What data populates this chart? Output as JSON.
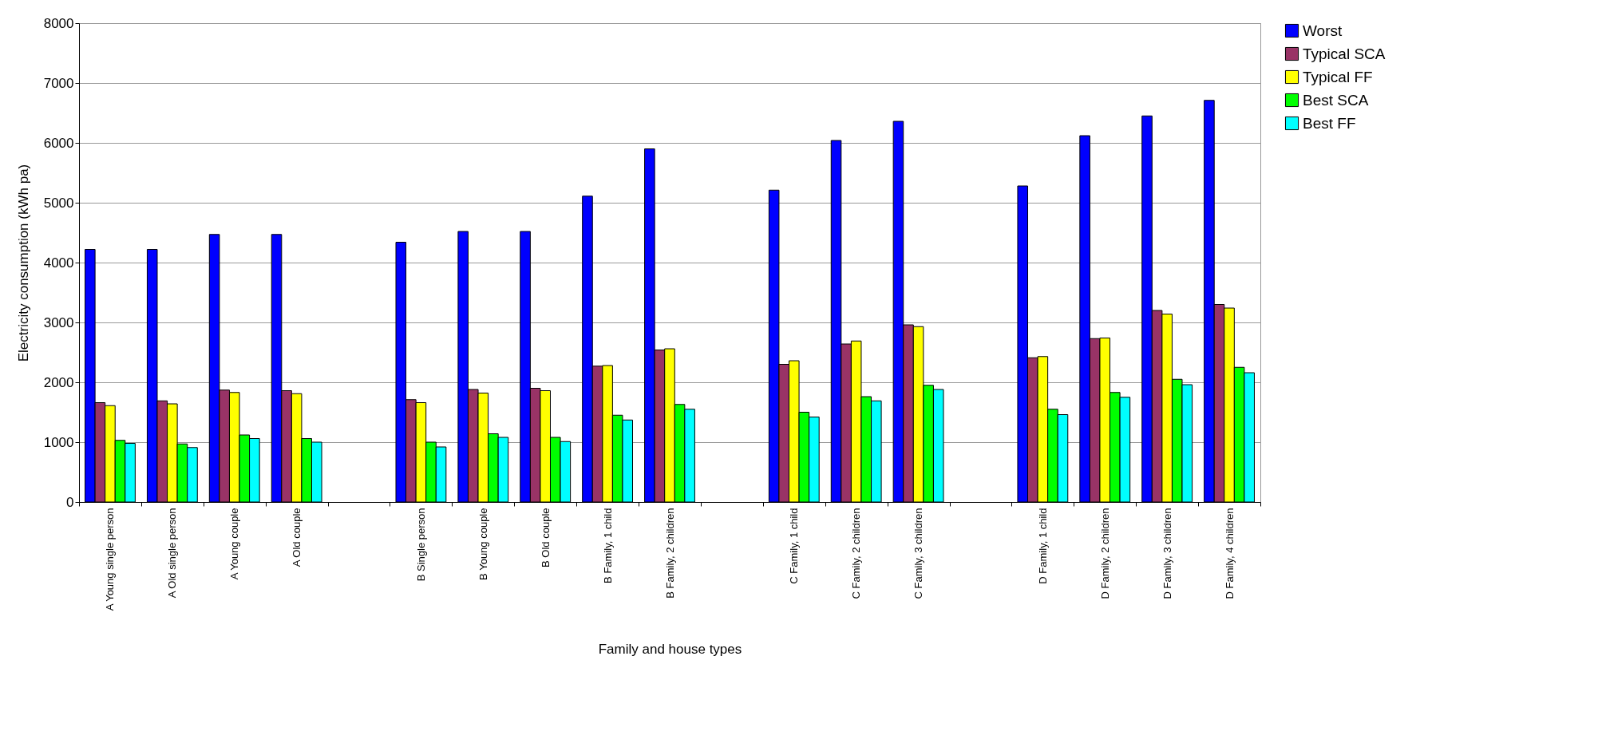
{
  "chart_data": {
    "type": "bar",
    "xlabel": "Family and house types",
    "ylabel": "Electricity consumption (kWh pa)",
    "categories": [
      "A Young single person",
      "A Old single person",
      "A Young couple",
      "A Old couple",
      null,
      "B Single person",
      "B Young couple",
      "B Old couple",
      "B Family, 1 child",
      "B Family, 2 children",
      null,
      "C Family, 1 child",
      "C Family, 2 children",
      "C Family, 3 children",
      null,
      "D Family, 1 child",
      "D Family, 2 children",
      "D Family, 3 children",
      "D Family, 4 children"
    ],
    "series": [
      {
        "name": "Worst",
        "color": "#0000ff",
        "values": [
          4220,
          4220,
          4470,
          4470,
          null,
          4340,
          4520,
          4520,
          5110,
          5900,
          null,
          5210,
          6040,
          6360,
          null,
          5280,
          6120,
          6450,
          6710
        ]
      },
      {
        "name": "Typical SCA",
        "color": "#993366",
        "values": [
          1660,
          1690,
          1870,
          1860,
          null,
          1710,
          1880,
          1900,
          2270,
          2540,
          null,
          2300,
          2640,
          2960,
          null,
          2410,
          2730,
          3200,
          3300
        ]
      },
      {
        "name": "Typical FF",
        "color": "#ffff00",
        "values": [
          1610,
          1640,
          1830,
          1810,
          null,
          1660,
          1820,
          1860,
          2280,
          2560,
          null,
          2360,
          2690,
          2930,
          null,
          2430,
          2740,
          3140,
          3240
        ]
      },
      {
        "name": "Best SCA",
        "color": "#00ff00",
        "values": [
          1030,
          970,
          1120,
          1060,
          null,
          1000,
          1140,
          1080,
          1450,
          1630,
          null,
          1500,
          1760,
          1950,
          null,
          1550,
          1830,
          2050,
          2250
        ]
      },
      {
        "name": "Best FF",
        "color": "#00ffff",
        "values": [
          980,
          910,
          1060,
          1000,
          null,
          920,
          1080,
          1010,
          1370,
          1550,
          null,
          1420,
          1690,
          1880,
          null,
          1460,
          1750,
          1960,
          2160
        ]
      }
    ],
    "ylim": [
      0,
      8000
    ],
    "yticks": [
      0,
      1000,
      2000,
      3000,
      4000,
      5000,
      6000,
      7000,
      8000
    ],
    "grid": "y",
    "legend": "right"
  }
}
